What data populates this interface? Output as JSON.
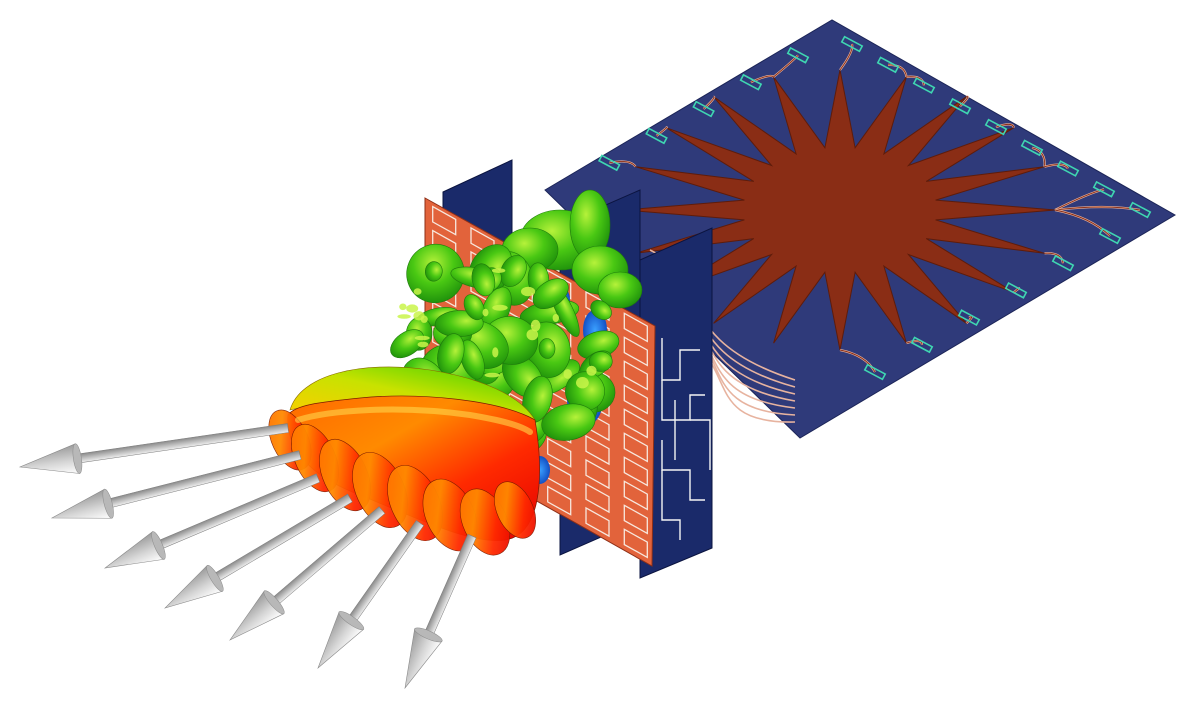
{
  "diagram": {
    "components": {
      "rotman_lens": {
        "color": "#8a2d15",
        "points": 20,
        "substrate_color": "#2f3a7a",
        "port_color": "#3fd6b1",
        "port_count": 20
      },
      "feed_boards": {
        "count": 3,
        "color": "#1a2a6a",
        "trace_color": "#f4f4f4"
      },
      "patch_array": {
        "rows": 10,
        "cols": 6,
        "color": "#e2633b",
        "patch_outline_color": "#f7e7dd"
      },
      "radiation_pattern": {
        "main_lobe_colors": [
          "#fb1d00",
          "#ff7b00",
          "#ffd000",
          "#6bd500"
        ],
        "side_lobe_colors": [
          "#37c514",
          "#8fe017",
          "#1b7bd6"
        ]
      },
      "beam_arrows": {
        "count": 7,
        "color": "#cfcfcf"
      }
    }
  }
}
